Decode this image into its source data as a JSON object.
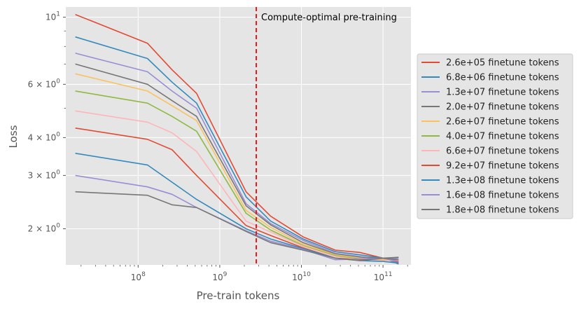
{
  "chart_data": {
    "type": "line",
    "title": "",
    "xlabel": "Pre-train tokens",
    "ylabel": "Loss",
    "xscale": "log",
    "yscale": "log",
    "xlim": [
      13000000.0,
      220000000000.0
    ],
    "ylim": [
      1.52,
      10.8
    ],
    "grid": true,
    "style": "ggplot",
    "legend_position": "outside right",
    "x_ticks": [
      {
        "value": 100000000.0,
        "base": "10",
        "exp": "8"
      },
      {
        "value": 1000000000.0,
        "base": "10",
        "exp": "9"
      },
      {
        "value": 10000000000.0,
        "base": "10",
        "exp": "10"
      },
      {
        "value": 100000000000.0,
        "base": "10",
        "exp": "11"
      }
    ],
    "y_ticks": [
      {
        "value": 10,
        "base": "10",
        "exp": "1",
        "prefix": ""
      },
      {
        "value": 6,
        "base": "10",
        "exp": "0",
        "prefix": "6 × "
      },
      {
        "value": 4,
        "base": "10",
        "exp": "0",
        "prefix": "4 × "
      },
      {
        "value": 3,
        "base": "10",
        "exp": "0",
        "prefix": "3 × "
      },
      {
        "value": 2,
        "base": "10",
        "exp": "0",
        "prefix": "2 × "
      }
    ],
    "vline": {
      "x": 2800000000.0,
      "color": "#e41a1c",
      "style": "dashed",
      "label": "Compute-optimal pre-training"
    },
    "x": [
      17000000.0,
      130000000.0,
      260000000.0,
      520000000.0,
      2100000000.0,
      4200000000.0,
      10500000000.0,
      26000000000.0,
      52000000000.0,
      100000000000.0,
      155000000000.0
    ],
    "series": [
      {
        "name": "2.6e+05 finetune tokens",
        "color": "#E24A33",
        "values": [
          10.2,
          8.2,
          6.7,
          5.6,
          2.65,
          2.2,
          1.88,
          1.7,
          1.67,
          1.6,
          1.55
        ]
      },
      {
        "name": "6.8e+06 finetune tokens",
        "color": "#348ABD",
        "values": [
          8.6,
          7.3,
          6.1,
          5.2,
          2.55,
          2.12,
          1.85,
          1.68,
          1.64,
          1.6,
          1.53
        ]
      },
      {
        "name": "1.3e+07 finetune tokens",
        "color": "#988ED5",
        "values": [
          7.6,
          6.6,
          5.7,
          5.0,
          2.42,
          2.08,
          1.83,
          1.66,
          1.62,
          1.58,
          1.6
        ]
      },
      {
        "name": "2.0e+07 finetune tokens",
        "color": "#777777",
        "values": [
          7.0,
          6.0,
          5.3,
          4.7,
          2.38,
          2.06,
          1.8,
          1.65,
          1.61,
          1.6,
          1.61
        ]
      },
      {
        "name": "2.6e+07 finetune tokens",
        "color": "#FBC15E",
        "values": [
          6.5,
          5.7,
          5.1,
          4.55,
          2.3,
          2.02,
          1.78,
          1.64,
          1.6,
          1.58,
          1.57
        ]
      },
      {
        "name": "4.0e+07 finetune tokens",
        "color": "#8EBA42",
        "values": [
          5.7,
          5.2,
          4.7,
          4.2,
          2.25,
          1.98,
          1.76,
          1.63,
          1.59,
          1.57,
          1.58
        ]
      },
      {
        "name": "6.6e+07 finetune tokens",
        "color": "#FFB5B8",
        "values": [
          4.9,
          4.5,
          4.15,
          3.6,
          2.12,
          1.95,
          1.75,
          1.62,
          1.58,
          1.57,
          1.57
        ]
      },
      {
        "name": "9.2e+07 finetune tokens",
        "color": "#E24A33",
        "values": [
          4.3,
          3.95,
          3.65,
          3.0,
          2.05,
          1.9,
          1.73,
          1.6,
          1.58,
          1.6,
          1.56
        ]
      },
      {
        "name": "1.3e+08 finetune tokens",
        "color": "#348ABD",
        "values": [
          3.55,
          3.25,
          2.85,
          2.5,
          2.0,
          1.85,
          1.72,
          1.6,
          1.57,
          1.56,
          1.54
        ]
      },
      {
        "name": "1.6e+08 finetune tokens",
        "color": "#988ED5",
        "values": [
          3.0,
          2.75,
          2.6,
          2.35,
          1.97,
          1.82,
          1.71,
          1.58,
          1.59,
          1.6,
          1.56
        ]
      },
      {
        "name": "1.8e+08 finetune tokens",
        "color": "#777777",
        "values": [
          2.65,
          2.58,
          2.4,
          2.35,
          1.96,
          1.8,
          1.7,
          1.6,
          1.57,
          1.6,
          1.58
        ]
      }
    ]
  }
}
